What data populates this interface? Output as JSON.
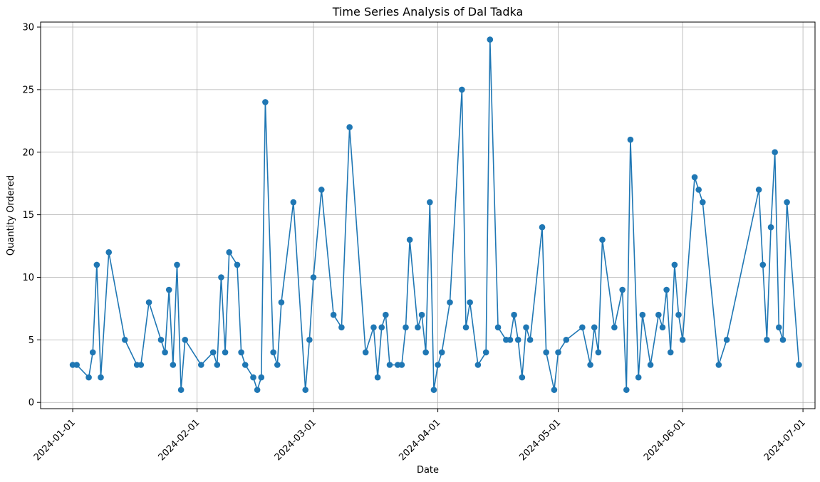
{
  "chart_data": {
    "type": "line",
    "title": "Time Series Analysis of Dal Tadka",
    "xlabel": "Date",
    "ylabel": "Quantity Ordered",
    "color": "#1f77b4",
    "grid": true,
    "marker": "circle",
    "ylim": [
      -0.5,
      30.4
    ],
    "xlim": [
      "2023-12-24",
      "2024-07-04"
    ],
    "y_ticks": [
      0,
      5,
      10,
      15,
      20,
      25,
      30
    ],
    "x_ticks": [
      "2024-01-01",
      "2024-02-01",
      "2024-03-01",
      "2024-04-01",
      "2024-05-01",
      "2024-06-01",
      "2024-07-01"
    ],
    "series": [
      {
        "points": [
          [
            "2024-01-01",
            3
          ],
          [
            "2024-01-02",
            3
          ],
          [
            "2024-01-05",
            2
          ],
          [
            "2024-01-06",
            4
          ],
          [
            "2024-01-07",
            11
          ],
          [
            "2024-01-08",
            2
          ],
          [
            "2024-01-10",
            12
          ],
          [
            "2024-01-14",
            5
          ],
          [
            "2024-01-17",
            3
          ],
          [
            "2024-01-18",
            3
          ],
          [
            "2024-01-20",
            8
          ],
          [
            "2024-01-23",
            5
          ],
          [
            "2024-01-24",
            4
          ],
          [
            "2024-01-25",
            9
          ],
          [
            "2024-01-26",
            3
          ],
          [
            "2024-01-27",
            11
          ],
          [
            "2024-01-28",
            1
          ],
          [
            "2024-01-29",
            5
          ],
          [
            "2024-02-02",
            3
          ],
          [
            "2024-02-05",
            4
          ],
          [
            "2024-02-06",
            3
          ],
          [
            "2024-02-07",
            10
          ],
          [
            "2024-02-08",
            4
          ],
          [
            "2024-02-09",
            12
          ],
          [
            "2024-02-11",
            11
          ],
          [
            "2024-02-12",
            4
          ],
          [
            "2024-02-13",
            3
          ],
          [
            "2024-02-15",
            2
          ],
          [
            "2024-02-16",
            1
          ],
          [
            "2024-02-17",
            2
          ],
          [
            "2024-02-18",
            24
          ],
          [
            "2024-02-20",
            4
          ],
          [
            "2024-02-21",
            3
          ],
          [
            "2024-02-22",
            8
          ],
          [
            "2024-02-25",
            16
          ],
          [
            "2024-02-28",
            1
          ],
          [
            "2024-02-29",
            5
          ],
          [
            "2024-03-01",
            10
          ],
          [
            "2024-03-03",
            17
          ],
          [
            "2024-03-06",
            7
          ],
          [
            "2024-03-08",
            6
          ],
          [
            "2024-03-10",
            22
          ],
          [
            "2024-03-14",
            4
          ],
          [
            "2024-03-16",
            6
          ],
          [
            "2024-03-17",
            2
          ],
          [
            "2024-03-18",
            6
          ],
          [
            "2024-03-19",
            7
          ],
          [
            "2024-03-20",
            3
          ],
          [
            "2024-03-22",
            3
          ],
          [
            "2024-03-23",
            3
          ],
          [
            "2024-03-24",
            6
          ],
          [
            "2024-03-25",
            13
          ],
          [
            "2024-03-27",
            6
          ],
          [
            "2024-03-28",
            7
          ],
          [
            "2024-03-29",
            4
          ],
          [
            "2024-03-30",
            16
          ],
          [
            "2024-03-31",
            1
          ],
          [
            "2024-04-01",
            3
          ],
          [
            "2024-04-02",
            4
          ],
          [
            "2024-04-04",
            8
          ],
          [
            "2024-04-07",
            25
          ],
          [
            "2024-04-08",
            6
          ],
          [
            "2024-04-09",
            8
          ],
          [
            "2024-04-11",
            3
          ],
          [
            "2024-04-13",
            4
          ],
          [
            "2024-04-14",
            29
          ],
          [
            "2024-04-16",
            6
          ],
          [
            "2024-04-18",
            5
          ],
          [
            "2024-04-19",
            5
          ],
          [
            "2024-04-20",
            7
          ],
          [
            "2024-04-21",
            5
          ],
          [
            "2024-04-22",
            2
          ],
          [
            "2024-04-23",
            6
          ],
          [
            "2024-04-24",
            5
          ],
          [
            "2024-04-27",
            14
          ],
          [
            "2024-04-28",
            4
          ],
          [
            "2024-04-30",
            1
          ],
          [
            "2024-05-01",
            4
          ],
          [
            "2024-05-03",
            5
          ],
          [
            "2024-05-07",
            6
          ],
          [
            "2024-05-09",
            3
          ],
          [
            "2024-05-10",
            6
          ],
          [
            "2024-05-11",
            4
          ],
          [
            "2024-05-12",
            13
          ],
          [
            "2024-05-15",
            6
          ],
          [
            "2024-05-17",
            9
          ],
          [
            "2024-05-18",
            1
          ],
          [
            "2024-05-19",
            21
          ],
          [
            "2024-05-21",
            2
          ],
          [
            "2024-05-22",
            7
          ],
          [
            "2024-05-24",
            3
          ],
          [
            "2024-05-26",
            7
          ],
          [
            "2024-05-27",
            6
          ],
          [
            "2024-05-28",
            9
          ],
          [
            "2024-05-29",
            4
          ],
          [
            "2024-05-30",
            11
          ],
          [
            "2024-05-31",
            7
          ],
          [
            "2024-06-01",
            5
          ],
          [
            "2024-06-04",
            18
          ],
          [
            "2024-06-05",
            17
          ],
          [
            "2024-06-06",
            16
          ],
          [
            "2024-06-10",
            3
          ],
          [
            "2024-06-12",
            5
          ],
          [
            "2024-06-20",
            17
          ],
          [
            "2024-06-21",
            11
          ],
          [
            "2024-06-22",
            5
          ],
          [
            "2024-06-23",
            14
          ],
          [
            "2024-06-24",
            20
          ],
          [
            "2024-06-25",
            6
          ],
          [
            "2024-06-26",
            5
          ],
          [
            "2024-06-27",
            16
          ],
          [
            "2024-06-30",
            3
          ]
        ]
      }
    ]
  }
}
